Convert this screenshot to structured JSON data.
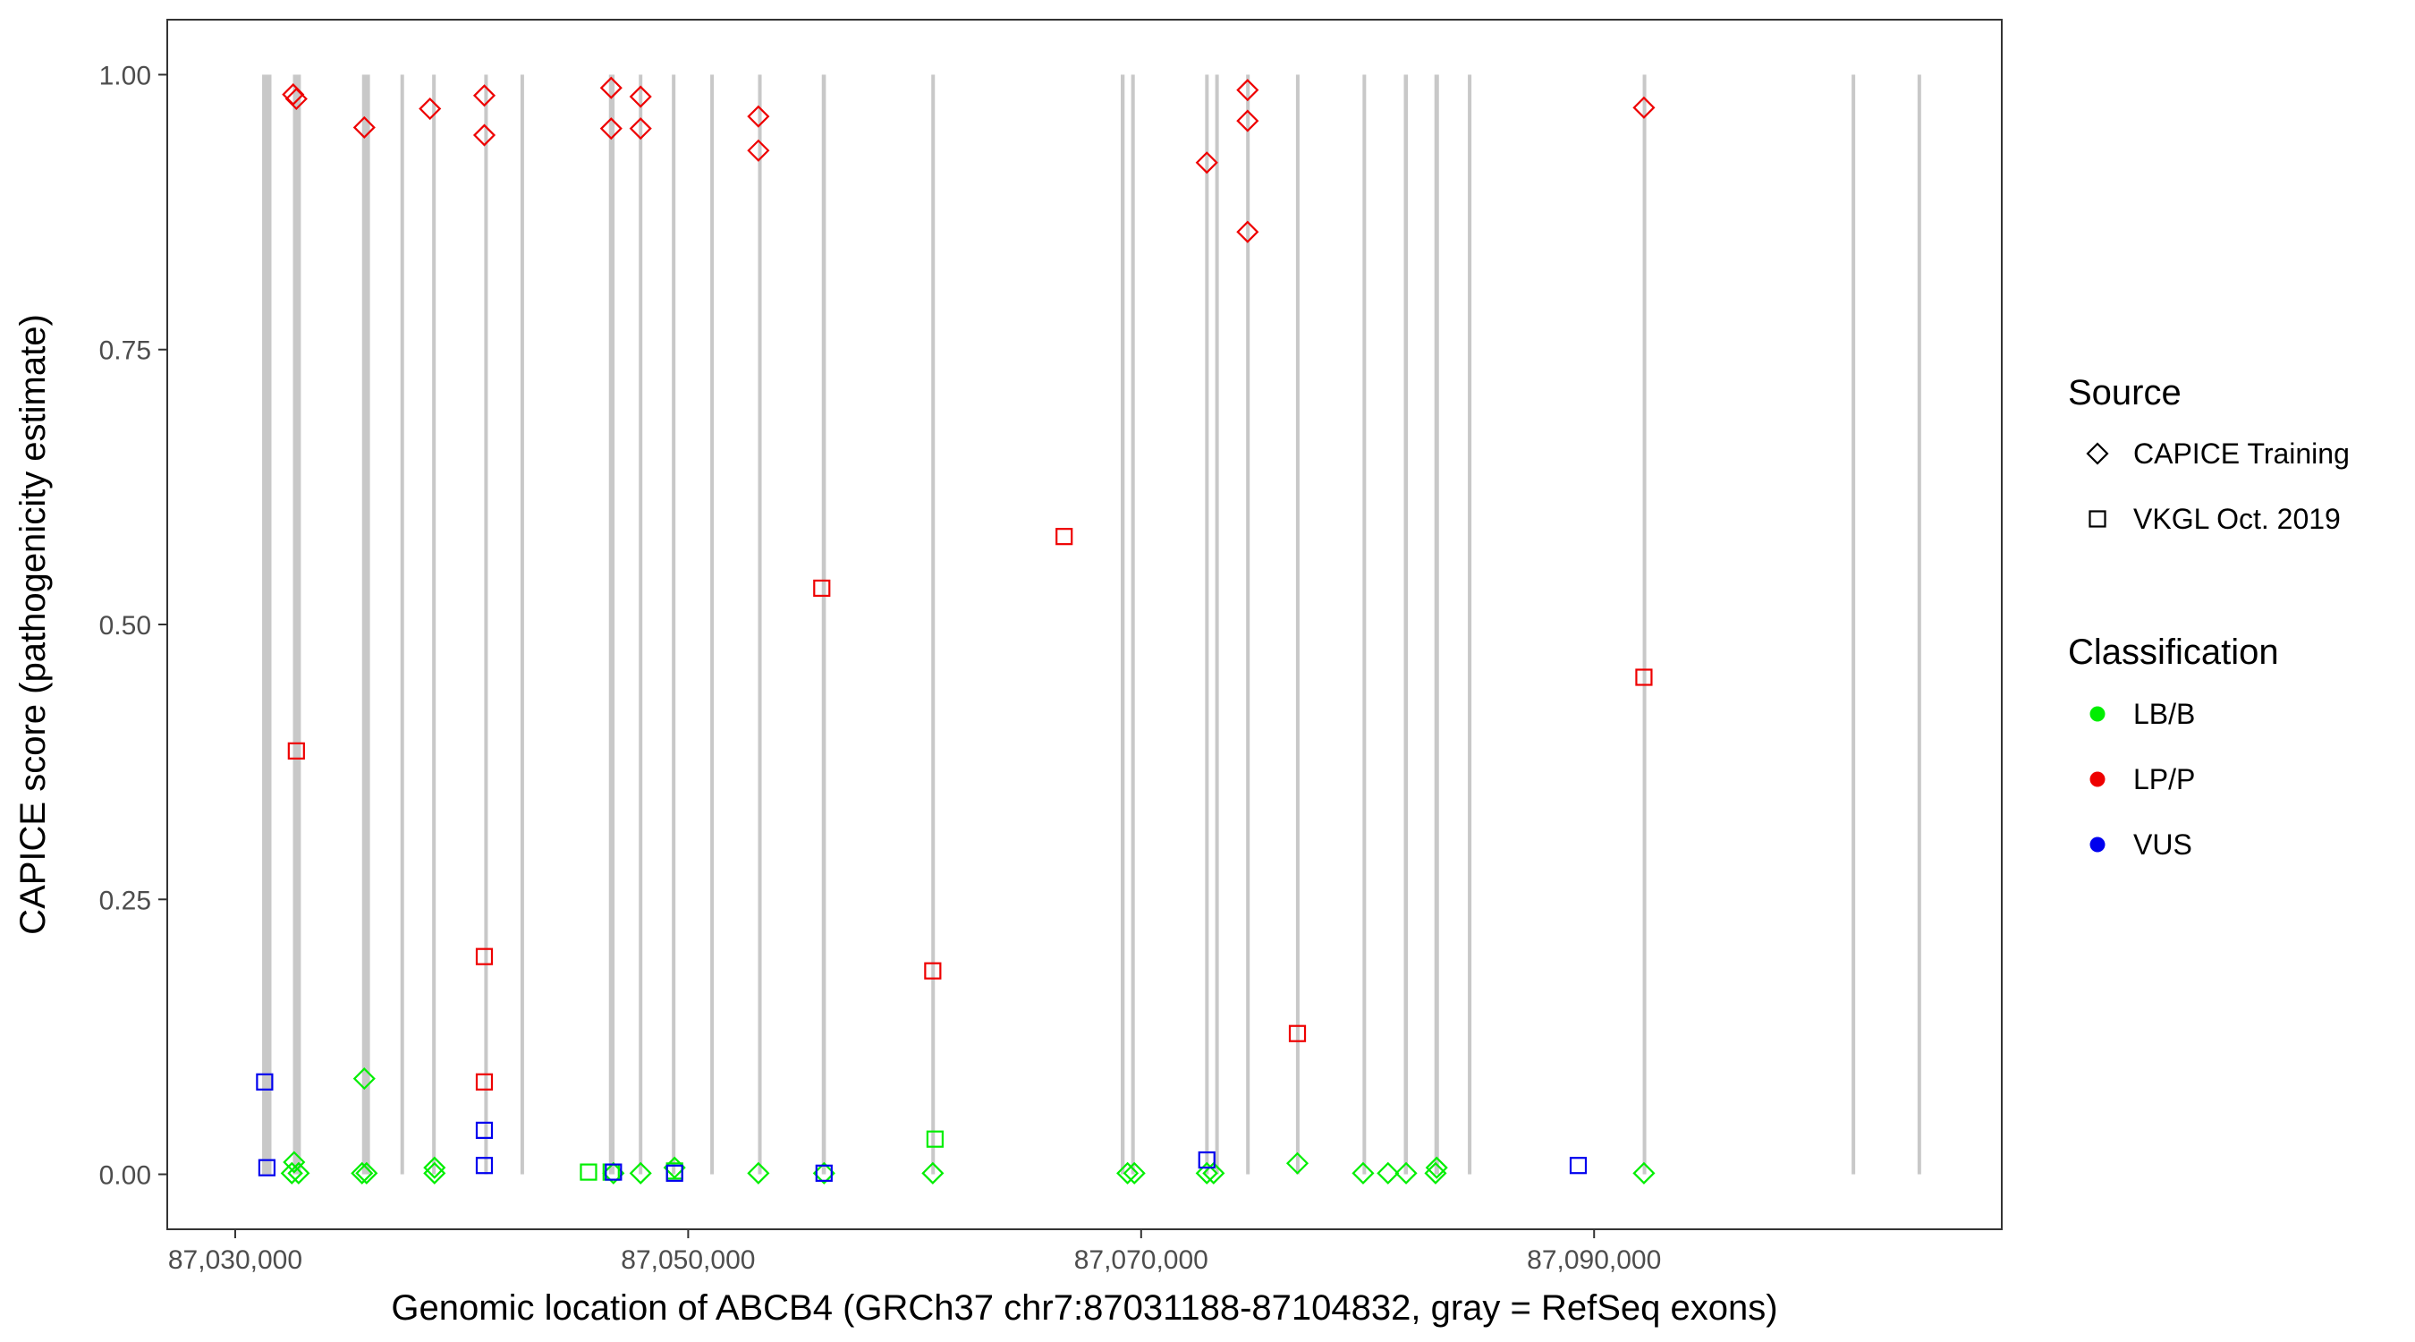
{
  "chart_data": {
    "type": "scatter",
    "xlabel": "Genomic location of ABCB4 (GRCh37 chr7:87031188-87104832, gray = RefSeq exons)",
    "ylabel": "CAPICE score (pathogenicity estimate)",
    "xlim": [
      87027000,
      87108000
    ],
    "ylim": [
      -0.05,
      1.05
    ],
    "x_ticks": [
      {
        "value": 87030000,
        "label": "87,030,000"
      },
      {
        "value": 87050000,
        "label": "87,050,000"
      },
      {
        "value": 87070000,
        "label": "87,070,000"
      },
      {
        "value": 87090000,
        "label": "87,090,000"
      }
    ],
    "y_ticks": [
      {
        "value": 0.0,
        "label": "0.00"
      },
      {
        "value": 0.25,
        "label": "0.25"
      },
      {
        "value": 0.5,
        "label": "0.50"
      },
      {
        "value": 0.75,
        "label": "0.75"
      },
      {
        "value": 1.0,
        "label": "1.00"
      }
    ],
    "grid": false,
    "exon_color": "#c8c8c8",
    "exons": [
      {
        "start": 87031188,
        "end": 87031600
      },
      {
        "start": 87032550,
        "end": 87032900
      },
      {
        "start": 87035600,
        "end": 87035950
      },
      {
        "start": 87037300,
        "end": 87037450
      },
      {
        "start": 87038700,
        "end": 87038850
      },
      {
        "start": 87041000,
        "end": 87041150
      },
      {
        "start": 87042600,
        "end": 87042750
      },
      {
        "start": 87046500,
        "end": 87046750
      },
      {
        "start": 87047850,
        "end": 87047950
      },
      {
        "start": 87049300,
        "end": 87049420
      },
      {
        "start": 87051000,
        "end": 87051110
      },
      {
        "start": 87053100,
        "end": 87053230
      },
      {
        "start": 87055900,
        "end": 87056080
      },
      {
        "start": 87060750,
        "end": 87060880
      },
      {
        "start": 87069100,
        "end": 87069270
      },
      {
        "start": 87069560,
        "end": 87069720
      },
      {
        "start": 87072850,
        "end": 87072960
      },
      {
        "start": 87073280,
        "end": 87073420
      },
      {
        "start": 87074650,
        "end": 87074780
      },
      {
        "start": 87076850,
        "end": 87076980
      },
      {
        "start": 87079800,
        "end": 87079910
      },
      {
        "start": 87081600,
        "end": 87081780
      },
      {
        "start": 87082950,
        "end": 87083150
      },
      {
        "start": 87084450,
        "end": 87084560
      },
      {
        "start": 87092150,
        "end": 87092300
      },
      {
        "start": 87101400,
        "end": 87101500
      },
      {
        "start": 87104300,
        "end": 87104420
      }
    ],
    "legend": {
      "position": "right",
      "source_title": "Source",
      "source_items": [
        {
          "label": "CAPICE Training",
          "shape": "diamond"
        },
        {
          "label": "VKGL Oct. 2019",
          "shape": "square"
        }
      ],
      "class_title": "Classification",
      "class_items": [
        {
          "label": "LB/B",
          "color": "#00ee00"
        },
        {
          "label": "LP/P",
          "color": "#ee0000"
        },
        {
          "label": "VUS",
          "color": "#0000ee"
        }
      ]
    },
    "series": [
      {
        "source": "CAPICE Training",
        "shape": "diamond",
        "classification": "LP/P",
        "color": "#ee0000",
        "points": [
          {
            "x": 87032560,
            "y": 0.982
          },
          {
            "x": 87032700,
            "y": 0.978
          },
          {
            "x": 87035700,
            "y": 0.952
          },
          {
            "x": 87038600,
            "y": 0.969
          },
          {
            "x": 87041000,
            "y": 0.981
          },
          {
            "x": 87041000,
            "y": 0.945
          },
          {
            "x": 87046600,
            "y": 0.988
          },
          {
            "x": 87046600,
            "y": 0.951
          },
          {
            "x": 87047900,
            "y": 0.98
          },
          {
            "x": 87047900,
            "y": 0.951
          },
          {
            "x": 87053100,
            "y": 0.962
          },
          {
            "x": 87053100,
            "y": 0.931
          },
          {
            "x": 87072900,
            "y": 0.92
          },
          {
            "x": 87074700,
            "y": 0.986
          },
          {
            "x": 87074700,
            "y": 0.958
          },
          {
            "x": 87074700,
            "y": 0.857
          },
          {
            "x": 87092200,
            "y": 0.97
          }
        ]
      },
      {
        "source": "CAPICE Training",
        "shape": "diamond",
        "classification": "LB/B",
        "color": "#00ee00",
        "points": [
          {
            "x": 87032600,
            "y": 0.011
          },
          {
            "x": 87032500,
            "y": 0.001
          },
          {
            "x": 87032800,
            "y": 0.001
          },
          {
            "x": 87035700,
            "y": 0.087
          },
          {
            "x": 87035600,
            "y": 0.001
          },
          {
            "x": 87035800,
            "y": 0.001
          },
          {
            "x": 87038800,
            "y": 0.006
          },
          {
            "x": 87038800,
            "y": 0.001
          },
          {
            "x": 87046700,
            "y": 0.001
          },
          {
            "x": 87047900,
            "y": 0.001
          },
          {
            "x": 87049400,
            "y": 0.006
          },
          {
            "x": 87053100,
            "y": 0.001
          },
          {
            "x": 87056000,
            "y": 0.001
          },
          {
            "x": 87060800,
            "y": 0.001
          },
          {
            "x": 87069400,
            "y": 0.001
          },
          {
            "x": 87069700,
            "y": 0.001
          },
          {
            "x": 87072900,
            "y": 0.001
          },
          {
            "x": 87073200,
            "y": 0.001
          },
          {
            "x": 87076900,
            "y": 0.01
          },
          {
            "x": 87079800,
            "y": 0.001
          },
          {
            "x": 87080900,
            "y": 0.001
          },
          {
            "x": 87081700,
            "y": 0.001
          },
          {
            "x": 87083000,
            "y": 0.001
          },
          {
            "x": 87083050,
            "y": 0.006
          },
          {
            "x": 87092200,
            "y": 0.001
          }
        ]
      },
      {
        "source": "VKGL Oct. 2019",
        "shape": "square",
        "classification": "LP/P",
        "color": "#ee0000",
        "points": [
          {
            "x": 87032700,
            "y": 0.385
          },
          {
            "x": 87041000,
            "y": 0.198
          },
          {
            "x": 87041000,
            "y": 0.084
          },
          {
            "x": 87055900,
            "y": 0.533
          },
          {
            "x": 87060800,
            "y": 0.185
          },
          {
            "x": 87066600,
            "y": 0.58
          },
          {
            "x": 87076900,
            "y": 0.128
          },
          {
            "x": 87092200,
            "y": 0.452
          }
        ]
      },
      {
        "source": "VKGL Oct. 2019",
        "shape": "square",
        "classification": "LB/B",
        "color": "#00ee00",
        "points": [
          {
            "x": 87045600,
            "y": 0.002
          },
          {
            "x": 87046600,
            "y": 0.002
          },
          {
            "x": 87049400,
            "y": 0.003
          },
          {
            "x": 87060900,
            "y": 0.032
          }
        ]
      },
      {
        "source": "VKGL Oct. 2019",
        "shape": "square",
        "classification": "VUS",
        "color": "#0000ee",
        "points": [
          {
            "x": 87031300,
            "y": 0.084
          },
          {
            "x": 87031400,
            "y": 0.006
          },
          {
            "x": 87041000,
            "y": 0.04
          },
          {
            "x": 87041000,
            "y": 0.008
          },
          {
            "x": 87046700,
            "y": 0.002
          },
          {
            "x": 87049400,
            "y": 0.001
          },
          {
            "x": 87056000,
            "y": 0.001
          },
          {
            "x": 87072900,
            "y": 0.013
          },
          {
            "x": 87089300,
            "y": 0.008
          }
        ]
      }
    ]
  }
}
